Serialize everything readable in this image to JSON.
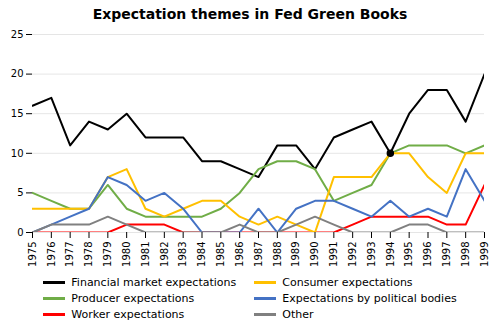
{
  "chart_data": {
    "type": "line",
    "title": "Expectation themes in Fed Green Books",
    "x": [
      1975,
      1976,
      1977,
      1978,
      1979,
      1980,
      1981,
      1982,
      1983,
      1984,
      1985,
      1986,
      1987,
      1988,
      1989,
      1990,
      1991,
      1992,
      1993,
      1994,
      1995,
      1996,
      1997,
      1998,
      1999
    ],
    "series": [
      {
        "name": "Financial market expectations",
        "color": "#000000",
        "values": [
          16,
          17,
          11,
          14,
          13,
          15,
          12,
          12,
          12,
          9,
          9,
          8,
          7,
          11,
          11,
          8,
          12,
          13,
          14,
          10,
          15,
          18,
          18,
          14,
          20
        ]
      },
      {
        "name": "Producer expectations",
        "color": "#70ad47",
        "values": [
          5,
          4,
          3,
          3,
          6,
          3,
          2,
          2,
          2,
          2,
          3,
          5,
          8,
          9,
          9,
          8,
          4,
          5,
          6,
          10,
          11,
          11,
          11,
          10,
          11
        ]
      },
      {
        "name": "Worker expectations",
        "color": "#ff0000",
        "values": [
          0,
          0,
          0,
          0,
          0,
          1,
          1,
          1,
          0,
          0,
          0,
          0,
          0,
          0,
          0,
          0,
          0,
          1,
          2,
          2,
          2,
          2,
          1,
          1,
          6
        ]
      },
      {
        "name": "Consumer expectations",
        "color": "#ffc000",
        "values": [
          3,
          3,
          3,
          3,
          7,
          8,
          3,
          2,
          3,
          4,
          4,
          2,
          1,
          2,
          1,
          0,
          7,
          7,
          7,
          10,
          10,
          7,
          5,
          10,
          10
        ]
      },
      {
        "name": "Expectations by political bodies",
        "color": "#4472c4",
        "values": [
          0,
          1,
          2,
          3,
          7,
          6,
          4,
          5,
          3,
          0,
          0,
          0,
          3,
          0,
          3,
          4,
          4,
          3,
          2,
          4,
          2,
          3,
          2,
          8,
          4
        ]
      },
      {
        "name": "Other",
        "color": "#808080",
        "values": [
          0,
          1,
          1,
          1,
          2,
          1,
          0,
          0,
          0,
          0,
          0,
          1,
          0,
          0,
          1,
          2,
          1,
          0,
          0,
          0,
          1,
          1,
          0,
          0,
          0
        ]
      },
      {
        "type": "scatter",
        "color": "#000000",
        "marker": "circle",
        "values": [
          null,
          null,
          null,
          null,
          null,
          null,
          null,
          null,
          null,
          null,
          null,
          null,
          null,
          null,
          null,
          null,
          null,
          null,
          null,
          10,
          null,
          null,
          null,
          null,
          null
        ]
      }
    ],
    "xlim": [
      1975,
      1999
    ],
    "xticks": [
      1975,
      1976,
      1977,
      1978,
      1979,
      1980,
      1981,
      1982,
      1983,
      1984,
      1985,
      1986,
      1987,
      1988,
      1989,
      1990,
      1991,
      1992,
      1993,
      1994,
      1995,
      1996,
      1997,
      1998,
      1999
    ],
    "ylim": [
      0,
      25
    ],
    "yticks": [
      0,
      5,
      10,
      15,
      20,
      25
    ],
    "grid": "y",
    "legend": "bottom"
  }
}
